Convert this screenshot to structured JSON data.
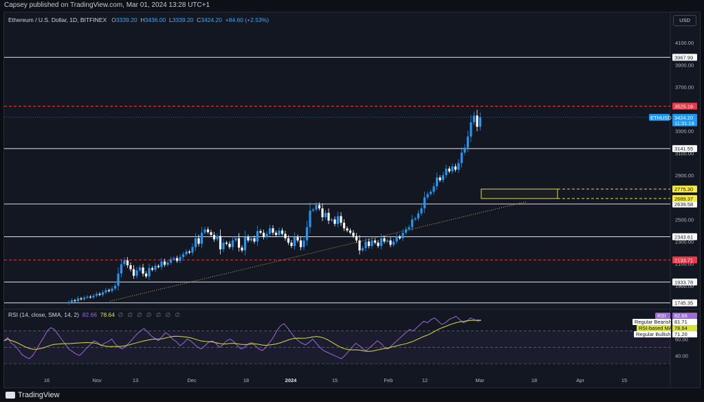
{
  "header": {
    "published": "Capsey published on TradingView.com, Mar 01, 2024 13:28 UTC+1"
  },
  "footer": {
    "brand": "TradingView"
  },
  "legend": {
    "title": "Ethereum / U.S. Dollar, 1D, BITFINEX",
    "o_label": "O",
    "o": "3339.20",
    "h_label": "H",
    "h": "3436.00",
    "l_label": "L",
    "l": "3339.20",
    "c_label": "C",
    "c": "3424.20",
    "change": "+84.60 (+2.53%)"
  },
  "currency_button": "USD",
  "rsi_legend": {
    "title": "RSI (14, close, SMA, 14, 2)",
    "rsi": "82.66",
    "ma": "78.64",
    "placeholders": "∅ ∅ ∅ ∅ ∅ ∅ ∅"
  },
  "colors": {
    "up": "#2196f3",
    "down": "#ffffff",
    "rsi": "#9c6bd6",
    "rsi_ma": "#d7e33a",
    "resistance_red": "#f23645",
    "zone": "#e5d94b",
    "trend": "#c8b04a"
  },
  "chart_data": {
    "type": "candlestick",
    "symbol": "ETHUSD",
    "price_axis": {
      "ticks": [
        "4100.00",
        "3900.00",
        "3700.00",
        "3300.00",
        "3100.00",
        "2900.00",
        "2500.00",
        "2300.00",
        "2100.00",
        "1900.00"
      ],
      "ylim": [
        1700,
        4250
      ]
    },
    "time_axis": {
      "ticks": [
        "16",
        "Nov",
        "13",
        "Dec",
        "18",
        "2024",
        "15",
        "Feb",
        "12",
        "Mar",
        "18",
        "Apr",
        "15"
      ]
    },
    "horizontal_levels": [
      {
        "value": 3967.99,
        "label": "3967.99",
        "style": "solid-white"
      },
      {
        "value": 3141.55,
        "label": "3141.55",
        "style": "solid-white"
      },
      {
        "value": 2639.58,
        "label": "2639.58",
        "style": "solid-white"
      },
      {
        "value": 2343.61,
        "label": "2343.61",
        "style": "solid-white"
      },
      {
        "value": 1933.78,
        "label": "1933.78",
        "style": "solid-white"
      },
      {
        "value": 1745.35,
        "label": "1745.35",
        "style": "solid-white"
      },
      {
        "value": 3525.16,
        "label": "3525.16",
        "style": "dashed-red"
      },
      {
        "value": 2133.71,
        "label": "2133.71",
        "style": "dashed-red"
      }
    ],
    "zone": {
      "top": 2775.3,
      "bottom": 2689.37,
      "top_label": "2775.30",
      "bottom_label": "2689.37"
    },
    "last_price": {
      "value": 3424.2,
      "label": "3424.20",
      "countdown": "11:31:19",
      "symbol_label": "ETHUSD"
    },
    "candles_close": [
      1752,
      1768,
      1762,
      1785,
      1778,
      1792,
      1801,
      1795,
      1810,
      1826,
      1818,
      1840,
      1860,
      1852,
      1875,
      1900,
      2010,
      2095,
      2130,
      2085,
      2050,
      1990,
      2040,
      2065,
      2010,
      1985,
      2060,
      2045,
      2080,
      2070,
      2120,
      2090,
      2110,
      2140,
      2150,
      2125,
      2160,
      2185,
      2210,
      2200,
      2250,
      2330,
      2280,
      2380,
      2410,
      2385,
      2360,
      2320,
      2350,
      2230,
      2290,
      2280,
      2250,
      2310,
      2330,
      2245,
      2220,
      2340,
      2310,
      2330,
      2300,
      2395,
      2380,
      2340,
      2370,
      2420,
      2380,
      2360,
      2400,
      2370,
      2330,
      2290,
      2260,
      2340,
      2310,
      2250,
      2310,
      2430,
      2580,
      2590,
      2630,
      2600,
      2520,
      2560,
      2490,
      2500,
      2460,
      2530,
      2470,
      2420,
      2400,
      2380,
      2350,
      2310,
      2220,
      2240,
      2300,
      2260,
      2310,
      2290,
      2260,
      2330,
      2300,
      2310,
      2270,
      2300,
      2345,
      2330,
      2380,
      2410,
      2430,
      2500,
      2510,
      2555,
      2600,
      2700,
      2730,
      2750,
      2800,
      2880,
      2855,
      2900,
      2960,
      2935,
      2980,
      2950,
      3010,
      3105,
      3150,
      3250,
      3380,
      3440,
      3339,
      3424
    ],
    "rsi_series": [
      58,
      62,
      55,
      52,
      47,
      41,
      38,
      36,
      40,
      47,
      55,
      62,
      70,
      74,
      72,
      66,
      60,
      54,
      48,
      45,
      42,
      40,
      44,
      49,
      53,
      58,
      56,
      52,
      55,
      57,
      60,
      54,
      50,
      48,
      52,
      56,
      61,
      66,
      70,
      73,
      69,
      64,
      61,
      58,
      63,
      68,
      65,
      60,
      57,
      52,
      55,
      60,
      58,
      54,
      50,
      48,
      52,
      56,
      58,
      55,
      50,
      53,
      58,
      60,
      57,
      52,
      48,
      50,
      54,
      56,
      52,
      48,
      46,
      50,
      56,
      62,
      70,
      76,
      79,
      74,
      68,
      62,
      58,
      55,
      53,
      56,
      60,
      55,
      50,
      46,
      44,
      42,
      40,
      38,
      36,
      40,
      45,
      50,
      55,
      52,
      48,
      46,
      50,
      54,
      58,
      55,
      50,
      48,
      52,
      56,
      60,
      64,
      68,
      72,
      70,
      74,
      78,
      82,
      80,
      84,
      86,
      82,
      78,
      80,
      84,
      86,
      88,
      84,
      80,
      82,
      86,
      84,
      82,
      83
    ]
  }
}
